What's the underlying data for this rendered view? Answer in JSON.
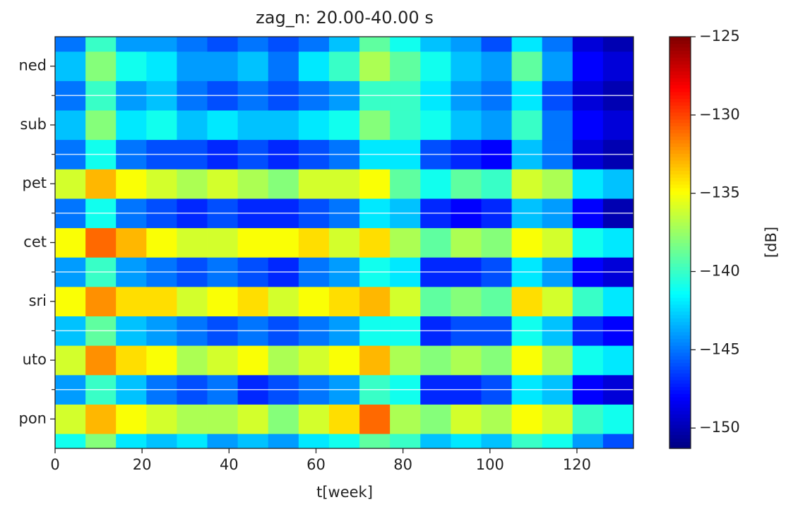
{
  "chart_data": {
    "type": "heatmap",
    "title": "zag_n: 20.00-40.00 s",
    "x_label": "t[week]",
    "colorbar_label": "[dB]",
    "colormap": "jet",
    "xlim": [
      0,
      133
    ],
    "xticks": [
      0,
      20,
      40,
      60,
      80,
      100,
      120
    ],
    "ylim": [
      0,
      7
    ],
    "yticks": [
      {
        "value": 0.5,
        "label": "pon"
      },
      {
        "value": 1.5,
        "label": "uto"
      },
      {
        "value": 2.5,
        "label": "sri"
      },
      {
        "value": 3.5,
        "label": "cet"
      },
      {
        "value": 4.5,
        "label": "pet"
      },
      {
        "value": 5.5,
        "label": "sub"
      },
      {
        "value": 6.5,
        "label": "ned"
      }
    ],
    "yminorticks": [
      1,
      2,
      3,
      4,
      5,
      6
    ],
    "zlim": [
      -151.3,
      -125
    ],
    "zticks": [
      {
        "value": -125,
        "label": "−125"
      },
      {
        "value": -130,
        "label": "−130"
      },
      {
        "value": -135,
        "label": "−135"
      },
      {
        "value": -140,
        "label": "−140"
      },
      {
        "value": -145,
        "label": "−145"
      },
      {
        "value": -150,
        "label": "−150"
      }
    ],
    "xedges": [
      0,
      7,
      14,
      21,
      28,
      35,
      42,
      49,
      56,
      63,
      70,
      77,
      84,
      91,
      98,
      105,
      112,
      119,
      126,
      133
    ],
    "yedges": [
      0,
      0.25,
      0.75,
      1.25,
      1.75,
      2.25,
      2.75,
      3.25,
      3.75,
      4.25,
      4.75,
      5.25,
      5.75,
      6.25,
      6.75,
      7
    ],
    "z": [
      [
        -141,
        -138,
        -142,
        -143,
        -142,
        -144,
        -143,
        -144,
        -142,
        -141,
        -139,
        -140,
        -143,
        -142,
        -143,
        -140,
        -141,
        -144,
        -146
      ],
      [
        -136,
        -133,
        -135,
        -136,
        -137,
        -137,
        -136,
        -138,
        -136,
        -134,
        -131,
        -137,
        -138,
        -136,
        -137,
        -135,
        -136,
        -140,
        -141
      ],
      [
        -144,
        -140,
        -143,
        -145,
        -146,
        -145,
        -147,
        -146,
        -145,
        -144,
        -140,
        -141,
        -147,
        -147,
        -146,
        -142,
        -143,
        -148,
        -149
      ],
      [
        -136,
        -132,
        -134,
        -135,
        -137,
        -136,
        -135,
        -137,
        -136,
        -135,
        -133,
        -137,
        -138,
        -137,
        -138,
        -135,
        -137,
        -141,
        -142
      ],
      [
        -143,
        -139,
        -143,
        -144,
        -145,
        -146,
        -145,
        -146,
        -145,
        -144,
        -141,
        -141,
        -147,
        -146,
        -146,
        -141,
        -143,
        -147,
        -148
      ],
      [
        -135,
        -132,
        -134,
        -134,
        -136,
        -135,
        -134,
        -136,
        -135,
        -134,
        -133,
        -136,
        -139,
        -138,
        -139,
        -134,
        -136,
        -140,
        -142
      ],
      [
        -144,
        -140,
        -144,
        -145,
        -146,
        -145,
        -146,
        -147,
        -145,
        -144,
        -141,
        -142,
        -147,
        -147,
        -146,
        -142,
        -144,
        -148,
        -149
      ],
      [
        -135,
        -131,
        -133,
        -135,
        -136,
        -136,
        -135,
        -135,
        -134,
        -136,
        -134,
        -137,
        -139,
        -137,
        -138,
        -135,
        -136,
        -141,
        -142
      ],
      [
        -145,
        -141,
        -145,
        -146,
        -147,
        -146,
        -147,
        -147,
        -146,
        -145,
        -142,
        -143,
        -147,
        -148,
        -147,
        -143,
        -144,
        -148,
        -150
      ],
      [
        -136,
        -133,
        -135,
        -136,
        -137,
        -136,
        -137,
        -138,
        -136,
        -136,
        -135,
        -139,
        -141,
        -139,
        -140,
        -136,
        -137,
        -142,
        -143
      ],
      [
        -145,
        -141,
        -145,
        -146,
        -146,
        -147,
        -146,
        -147,
        -146,
        -145,
        -142,
        -142,
        -146,
        -147,
        -148,
        -143,
        -145,
        -149,
        -150
      ],
      [
        -143,
        -138,
        -142,
        -141,
        -143,
        -142,
        -143,
        -143,
        -142,
        -141,
        -138,
        -140,
        -141,
        -143,
        -144,
        -140,
        -145,
        -148,
        -149
      ],
      [
        -145,
        -140,
        -144,
        -143,
        -145,
        -146,
        -145,
        -146,
        -145,
        -144,
        -140,
        -140,
        -142,
        -144,
        -145,
        -142,
        -146,
        -149,
        -150
      ],
      [
        -143,
        -138,
        -141,
        -142,
        -144,
        -144,
        -143,
        -145,
        -142,
        -140,
        -137,
        -139,
        -141,
        -143,
        -144,
        -139,
        -144,
        -148,
        -149
      ],
      [
        -145,
        -140,
        -144,
        -144,
        -145,
        -146,
        -145,
        -146,
        -145,
        -143,
        -139,
        -141,
        -143,
        -144,
        -146,
        -142,
        -145,
        -149,
        -150
      ]
    ]
  }
}
